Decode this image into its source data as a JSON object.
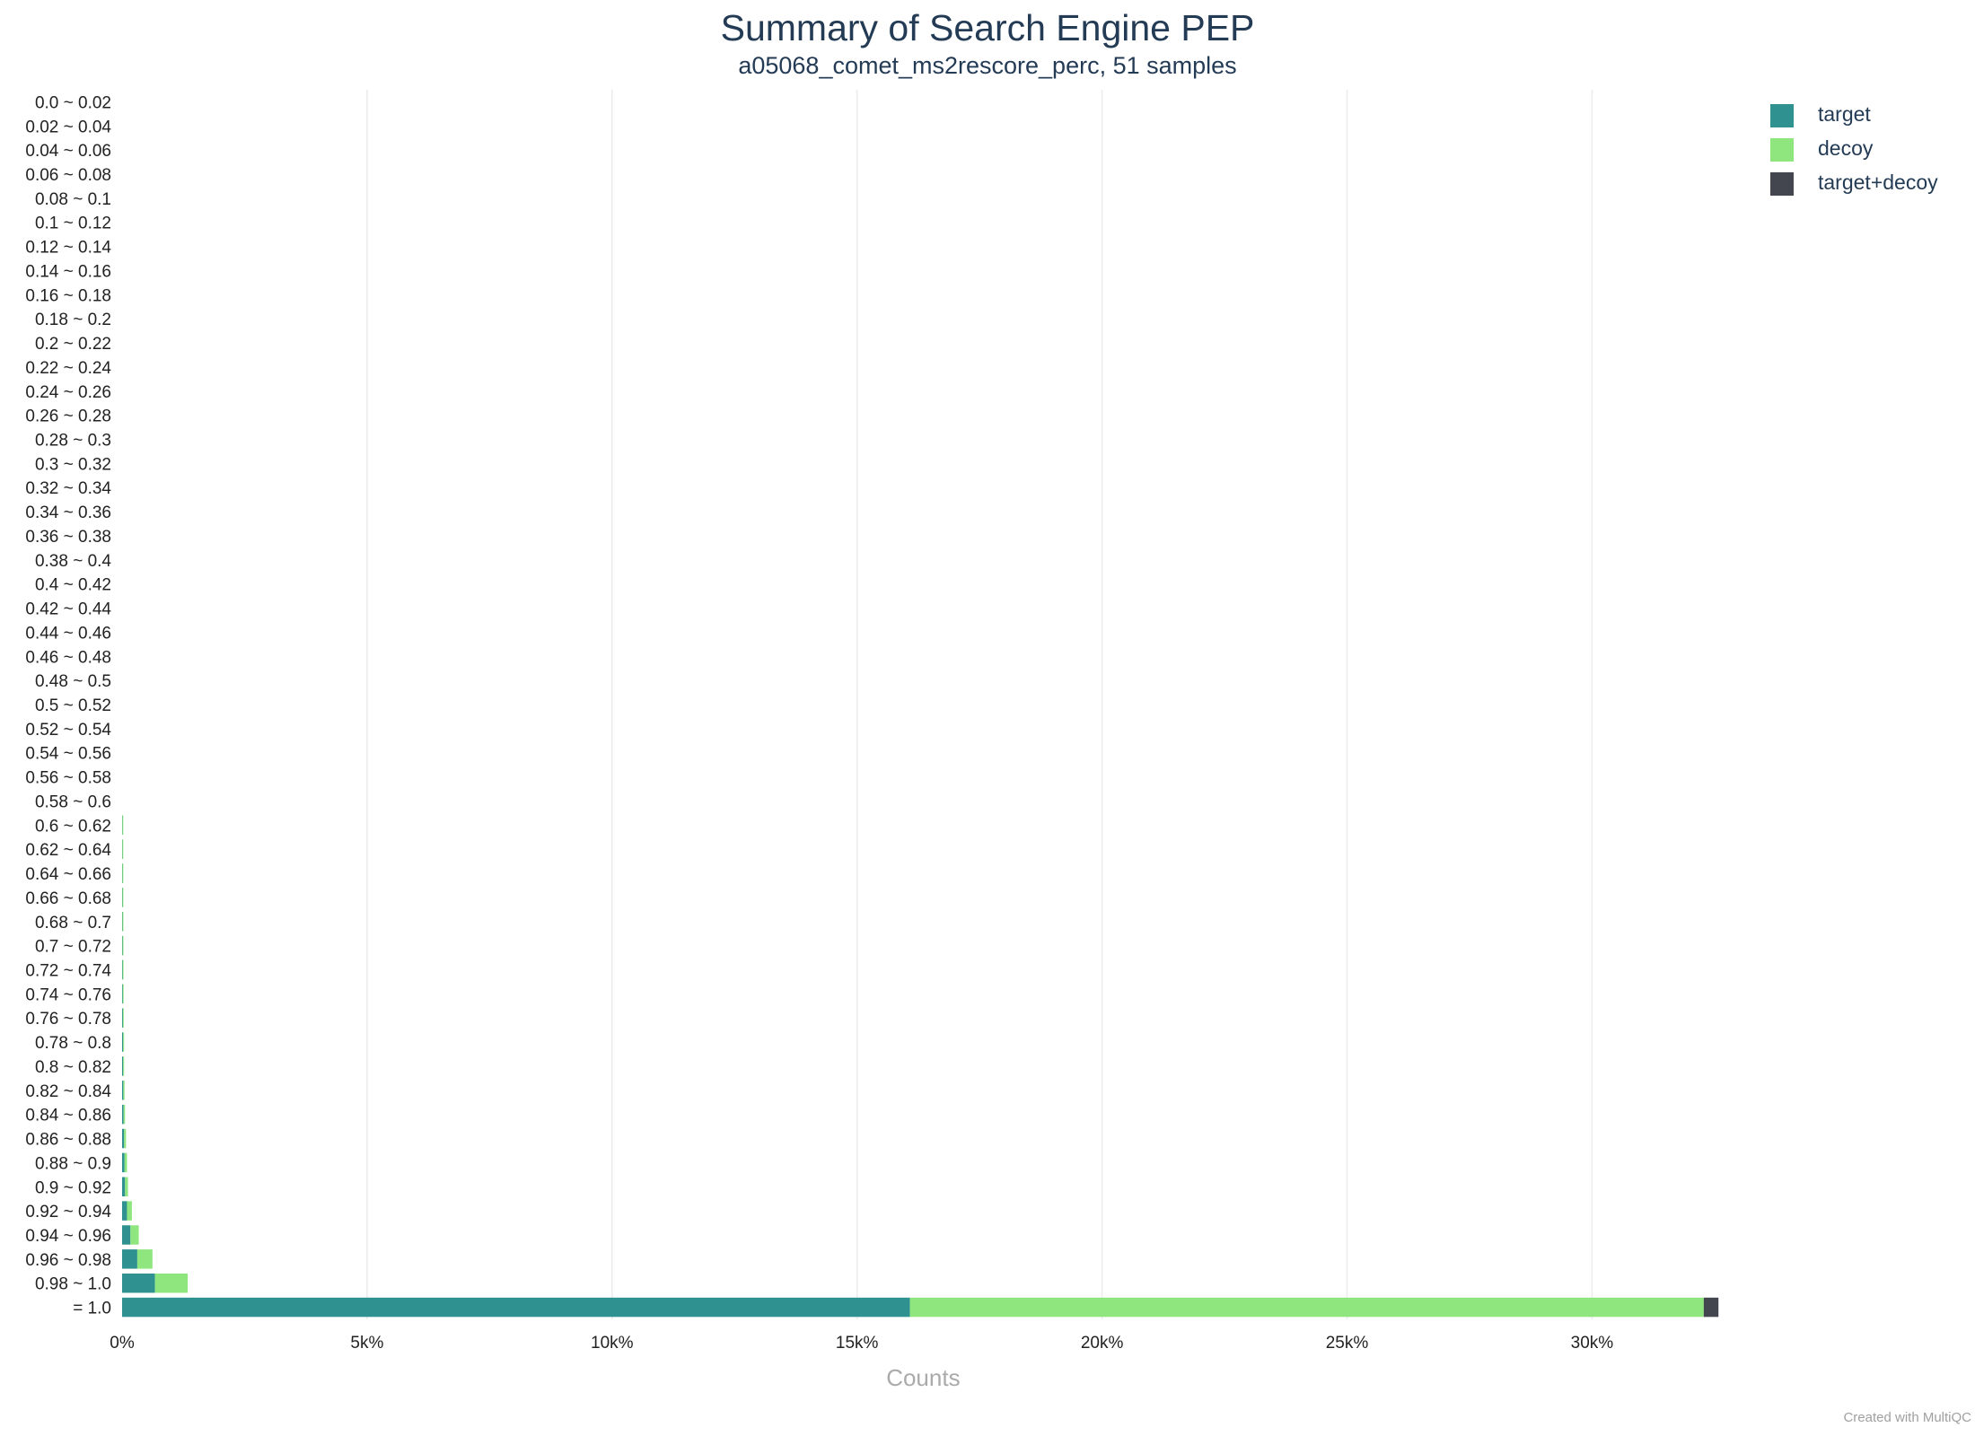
{
  "chart_data": {
    "type": "bar",
    "orientation": "horizontal",
    "stacked": true,
    "title": "Summary of Search Engine PEP",
    "subtitle": "a05068_comet_ms2rescore_perc, 51 samples",
    "xlabel": "Counts",
    "ylabel": "",
    "xlim": [
      0,
      32700
    ],
    "x_ticks": [
      0,
      5000,
      10000,
      15000,
      20000,
      25000,
      30000
    ],
    "x_tick_labels": [
      "0%",
      "5k%",
      "10k%",
      "15k%",
      "20k%",
      "25k%",
      "30k%"
    ],
    "grid": "vertical",
    "legend_position": "top-right",
    "categories": [
      "0.0 ~ 0.02",
      "0.02 ~ 0.04",
      "0.04 ~ 0.06",
      "0.06 ~ 0.08",
      "0.08 ~ 0.1",
      "0.1 ~ 0.12",
      "0.12 ~ 0.14",
      "0.14 ~ 0.16",
      "0.16 ~ 0.18",
      "0.18 ~ 0.2",
      "0.2 ~ 0.22",
      "0.22 ~ 0.24",
      "0.24 ~ 0.26",
      "0.26 ~ 0.28",
      "0.28 ~ 0.3",
      "0.3 ~ 0.32",
      "0.32 ~ 0.34",
      "0.34 ~ 0.36",
      "0.36 ~ 0.38",
      "0.38 ~ 0.4",
      "0.4 ~ 0.42",
      "0.42 ~ 0.44",
      "0.44 ~ 0.46",
      "0.46 ~ 0.48",
      "0.48 ~ 0.5",
      "0.5 ~ 0.52",
      "0.52 ~ 0.54",
      "0.54 ~ 0.56",
      "0.56 ~ 0.58",
      "0.58 ~ 0.6",
      "0.6 ~ 0.62",
      "0.62 ~ 0.64",
      "0.64 ~ 0.66",
      "0.66 ~ 0.68",
      "0.68 ~ 0.7",
      "0.7 ~ 0.72",
      "0.72 ~ 0.74",
      "0.74 ~ 0.76",
      "0.76 ~ 0.78",
      "0.78 ~ 0.8",
      "0.8 ~ 0.82",
      "0.82 ~ 0.84",
      "0.84 ~ 0.86",
      "0.86 ~ 0.88",
      "0.88 ~ 0.9",
      "0.9 ~ 0.92",
      "0.92 ~ 0.94",
      "0.94 ~ 0.96",
      "0.96 ~ 0.98",
      "0.98 ~ 1.0",
      "= 1.0"
    ],
    "series": [
      {
        "name": "target",
        "color": "#2f9290",
        "values": [
          0,
          0,
          0,
          0,
          0,
          0,
          0,
          0,
          0,
          0,
          0,
          0,
          0,
          0,
          0,
          0,
          0,
          0,
          0,
          0,
          0,
          0,
          0,
          0,
          0,
          0,
          0,
          0,
          0,
          0,
          5,
          5,
          6,
          7,
          8,
          9,
          10,
          12,
          15,
          20,
          20,
          25,
          30,
          40,
          50,
          60,
          100,
          170,
          310,
          670,
          16080
        ]
      },
      {
        "name": "decoy",
        "color": "#8fe67f",
        "values": [
          0,
          0,
          0,
          0,
          0,
          0,
          0,
          0,
          0,
          0,
          0,
          0,
          0,
          0,
          0,
          0,
          0,
          0,
          0,
          0,
          0,
          0,
          0,
          0,
          0,
          0,
          0,
          0,
          0,
          0,
          5,
          5,
          6,
          7,
          8,
          9,
          10,
          12,
          15,
          20,
          20,
          25,
          30,
          40,
          50,
          60,
          100,
          170,
          310,
          670,
          16200
        ]
      },
      {
        "name": "target+decoy",
        "color": "#43464e",
        "values": [
          0,
          0,
          0,
          0,
          0,
          0,
          0,
          0,
          0,
          0,
          0,
          0,
          0,
          0,
          0,
          0,
          0,
          0,
          0,
          0,
          0,
          0,
          0,
          0,
          0,
          0,
          0,
          0,
          0,
          0,
          0,
          0,
          0,
          0,
          0,
          0,
          0,
          0,
          0,
          0,
          0,
          0,
          0,
          0,
          0,
          0,
          0,
          0,
          0,
          0,
          300
        ]
      }
    ]
  },
  "credit": "Created with MultiQC"
}
